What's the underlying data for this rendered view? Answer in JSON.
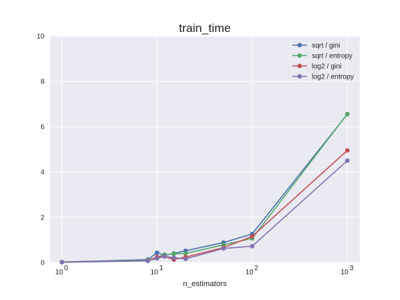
{
  "chart_data": {
    "type": "line",
    "title": "train_time",
    "xlabel": "n_estimators",
    "ylabel": "",
    "xscale": "log",
    "xlim": [
      0.75,
      1350
    ],
    "ylim": [
      0,
      10
    ],
    "grid": true,
    "legend_position": "top-right",
    "x_ticks": [
      {
        "value": 1,
        "base": "10",
        "exp": "0"
      },
      {
        "value": 10,
        "base": "10",
        "exp": "1"
      },
      {
        "value": 100,
        "base": "10",
        "exp": "2"
      },
      {
        "value": 1000,
        "base": "10",
        "exp": "3"
      }
    ],
    "y_ticks": [
      {
        "value": 0,
        "label": "0"
      },
      {
        "value": 2,
        "label": "2"
      },
      {
        "value": 4,
        "label": "4"
      },
      {
        "value": 6,
        "label": "6"
      },
      {
        "value": 8,
        "label": "8"
      },
      {
        "value": 10,
        "label": "10"
      }
    ],
    "x": [
      1,
      8,
      10,
      12,
      15,
      20,
      50,
      100,
      1000
    ],
    "series": [
      {
        "name": "sqrt / gini",
        "color": "#4c72b0",
        "values": [
          0.02,
          0.13,
          0.43,
          0.32,
          0.4,
          0.52,
          0.88,
          1.26,
          6.55
        ]
      },
      {
        "name": "sqrt / entropy",
        "color": "#55a868",
        "values": [
          0.02,
          0.1,
          0.23,
          0.35,
          0.38,
          0.4,
          0.78,
          1.06,
          6.56
        ]
      },
      {
        "name": "log2 / gini",
        "color": "#c44e52",
        "values": [
          0.01,
          0.08,
          0.24,
          0.27,
          0.13,
          0.24,
          0.66,
          1.15,
          4.95
        ]
      },
      {
        "name": "log2 / entropy",
        "color": "#8172b2",
        "values": [
          0.01,
          0.07,
          0.18,
          0.27,
          0.21,
          0.16,
          0.62,
          0.72,
          4.5
        ]
      }
    ]
  }
}
